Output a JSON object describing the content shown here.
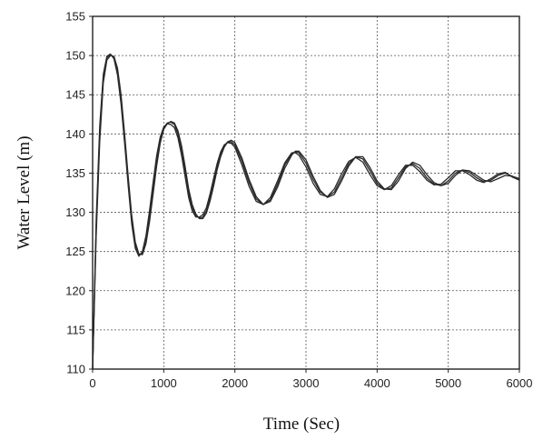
{
  "chart_data": {
    "type": "line",
    "xlabel": "Time (Sec)",
    "ylabel": "Water Level (m)",
    "xlim": [
      0,
      6000
    ],
    "ylim": [
      110,
      155
    ],
    "xticks": [
      0,
      1000,
      2000,
      3000,
      4000,
      5000,
      6000
    ],
    "yticks": [
      110,
      115,
      120,
      125,
      130,
      135,
      140,
      145,
      150,
      155
    ],
    "grid": true,
    "series": [
      {
        "x": [
          0,
          50,
          100,
          150,
          200,
          250,
          300,
          350,
          400,
          450,
          500,
          550,
          600,
          650,
          700,
          750,
          800,
          850,
          900,
          950,
          1000,
          1050,
          1100,
          1150,
          1200,
          1250,
          1300,
          1350,
          1400,
          1450,
          1500,
          1550,
          1600,
          1650,
          1700,
          1750,
          1800,
          1850,
          1900,
          1950,
          2000,
          2100,
          2200,
          2300,
          2400,
          2500,
          2600,
          2700,
          2800,
          2850,
          2900,
          3000,
          3100,
          3200,
          3300,
          3400,
          3500,
          3600,
          3700,
          3800,
          3900,
          4000,
          4100,
          4200,
          4300,
          4400,
          4500,
          4600,
          4700,
          4800,
          4900,
          5000,
          5100,
          5200,
          5300,
          5400,
          5500,
          5600,
          5700,
          5800,
          5900,
          6000
        ],
        "values": [
          110,
          128,
          140,
          147,
          149.7,
          150.1,
          149.8,
          148,
          144.5,
          139.5,
          134,
          129,
          125.8,
          124.5,
          124.8,
          126.5,
          129.5,
          133,
          136.5,
          139.2,
          140.8,
          141.4,
          141.5,
          141.2,
          140,
          138,
          135.3,
          132.5,
          130.6,
          129.6,
          129.3,
          129.4,
          130.2,
          131.8,
          133.8,
          135.8,
          137.4,
          138.5,
          139,
          139,
          138.6,
          136.5,
          133.8,
          131.7,
          131,
          131.6,
          133.6,
          136,
          137.5,
          137.7,
          137.6,
          136.3,
          134.2,
          132.6,
          132,
          132.6,
          134.4,
          136.2,
          137.1,
          136.8,
          135.3,
          133.7,
          132.9,
          133.1,
          134.4,
          135.8,
          136.2,
          135.6,
          134.4,
          133.6,
          133.4,
          134,
          135,
          135.4,
          135.1,
          134.4,
          133.9,
          134.1,
          134.7,
          135,
          134.6,
          134.2
        ]
      },
      {
        "x": [
          0,
          50,
          100,
          150,
          200,
          250,
          300,
          350,
          400,
          450,
          500,
          550,
          600,
          650,
          700,
          750,
          800,
          850,
          900,
          950,
          1000,
          1050,
          1100,
          1150,
          1200,
          1250,
          1300,
          1350,
          1400,
          1450,
          1500,
          1550,
          1600,
          1650,
          1700,
          1750,
          1800,
          1850,
          1900,
          1950,
          2000,
          2100,
          2200,
          2300,
          2400,
          2500,
          2600,
          2700,
          2800,
          2850,
          2900,
          3000,
          3100,
          3200,
          3300,
          3400,
          3500,
          3600,
          3700,
          3800,
          3900,
          4000,
          4100,
          4200,
          4300,
          4400,
          4500,
          4600,
          4700,
          4800,
          4900,
          5000,
          5100,
          5200,
          5300,
          5400,
          5500,
          5600,
          5700,
          5800,
          5900,
          6000
        ],
        "values": [
          110,
          127,
          139,
          146.5,
          149.4,
          150,
          149.9,
          148.4,
          145,
          140,
          134.6,
          129.6,
          126.2,
          124.7,
          124.6,
          126,
          128.8,
          132.3,
          135.9,
          138.8,
          140.6,
          141.3,
          141.6,
          141.4,
          140.4,
          138.5,
          135.9,
          133,
          131,
          129.8,
          129.2,
          129.2,
          129.9,
          131.4,
          133.3,
          135.4,
          137.1,
          138.3,
          139,
          139.2,
          138.9,
          136.9,
          134.2,
          132,
          131,
          131.4,
          133.2,
          135.6,
          137.3,
          137.8,
          137.8,
          136.7,
          134.6,
          132.8,
          131.9,
          132.3,
          134,
          135.9,
          137.1,
          137.1,
          135.7,
          134,
          133,
          132.9,
          134,
          135.6,
          136.4,
          136,
          134.8,
          133.8,
          133.4,
          133.7,
          134.7,
          135.4,
          135.3,
          134.7,
          134.1,
          133.9,
          134.3,
          134.7,
          134.6,
          134.3
        ]
      },
      {
        "x": [
          0,
          50,
          100,
          150,
          200,
          250,
          300,
          350,
          400,
          450,
          500,
          550,
          600,
          650,
          700,
          750,
          800,
          850,
          900,
          950,
          1000,
          1050,
          1100,
          1150,
          1200,
          1250,
          1300,
          1350,
          1400,
          1450,
          1500,
          1550,
          1600,
          1650,
          1700,
          1750,
          1800,
          1850,
          1900,
          1950,
          2000,
          2100,
          2200,
          2300,
          2400,
          2500,
          2600,
          2700,
          2800,
          2850,
          2900,
          3000,
          3100,
          3200,
          3300,
          3400,
          3500,
          3600,
          3700,
          3800,
          3900,
          4000,
          4100,
          4200,
          4300,
          4400,
          4500,
          4600,
          4700,
          4800,
          4900,
          5000,
          5100,
          5200,
          5300,
          5400,
          5500,
          5600,
          5700,
          5800,
          5900,
          6000
        ],
        "values": [
          110,
          129,
          141,
          147.6,
          149.9,
          150.2,
          149.6,
          147.5,
          143.8,
          138.8,
          133.4,
          128.5,
          125.4,
          124.4,
          125,
          127,
          130.2,
          133.8,
          137.2,
          139.6,
          140.9,
          141.3,
          141.2,
          140.8,
          139.5,
          137.3,
          134.6,
          131.9,
          130.2,
          129.4,
          129.4,
          129.7,
          130.6,
          132.3,
          134.3,
          136.2,
          137.7,
          138.6,
          138.9,
          138.8,
          138.3,
          136,
          133.3,
          131.4,
          131,
          131.9,
          134,
          136.3,
          137.6,
          137.6,
          137.3,
          135.8,
          133.7,
          132.3,
          132,
          133,
          134.9,
          136.5,
          137,
          136.4,
          134.8,
          133.4,
          132.9,
          133.4,
          134.8,
          136,
          136,
          135.2,
          134.1,
          133.5,
          133.6,
          134.4,
          135.3,
          135.3,
          134.8,
          134.1,
          133.8,
          134.3,
          134.9,
          135.1,
          134.5,
          134.1
        ]
      }
    ]
  }
}
